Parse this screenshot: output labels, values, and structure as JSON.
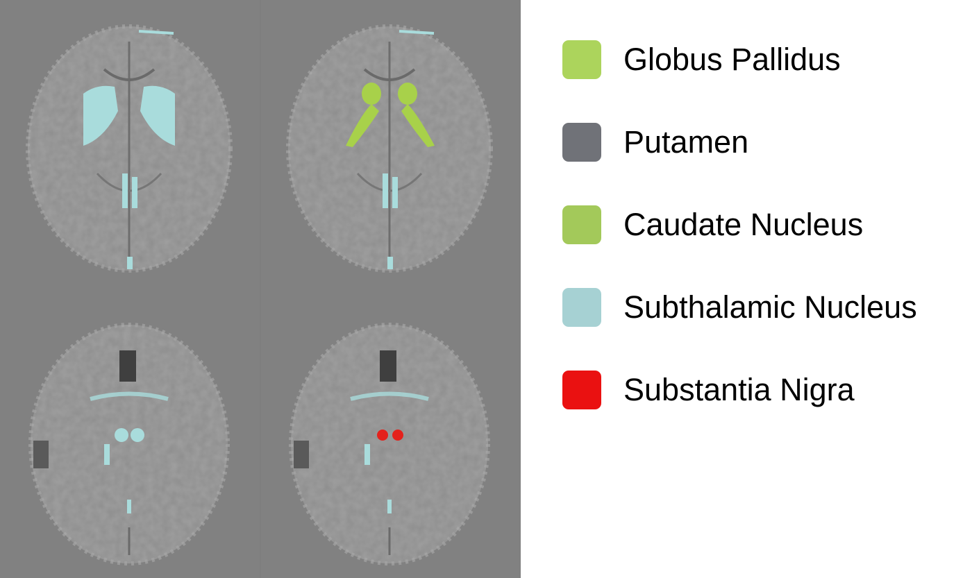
{
  "mri": {
    "background": "#818181",
    "brain_tissue": "#8f8f8f",
    "highlight_cyan": "#a9dcdc",
    "highlight_green": "#a8d14a",
    "highlight_red": "#e4211c",
    "slices": [
      {
        "row": "top",
        "col": "left",
        "overlay": "none"
      },
      {
        "row": "top",
        "col": "right",
        "overlay": "globus-pallidus"
      },
      {
        "row": "bottom",
        "col": "left",
        "overlay": "none"
      },
      {
        "row": "bottom",
        "col": "right",
        "overlay": "substantia-nigra"
      }
    ]
  },
  "legend": {
    "items": [
      {
        "label": "Globus Pallidus",
        "color": "#acd45c"
      },
      {
        "label": "Putamen",
        "color": "#707278"
      },
      {
        "label": "Caudate Nucleus",
        "color": "#a3c95a"
      },
      {
        "label": "Subthalamic Nucleus",
        "color": "#a6d1d3"
      },
      {
        "label": "Substantia Nigra",
        "color": "#ea1111"
      }
    ]
  }
}
